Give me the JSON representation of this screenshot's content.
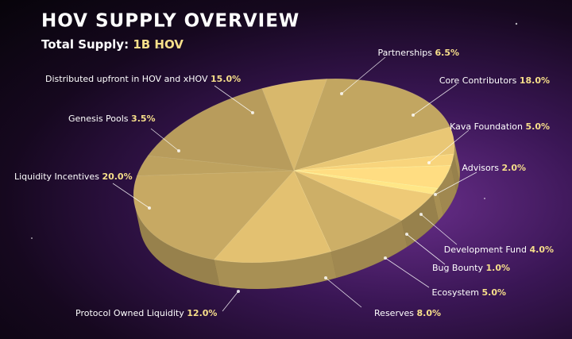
{
  "chart_data": {
    "type": "pie",
    "title": "HOV SUPPLY OVERVIEW",
    "total_supply": {
      "label": "Total Supply:",
      "value": "1B HOV"
    },
    "categories": [
      "Partnerships",
      "Core Contributors",
      "Kava Foundation",
      "Advisors",
      "Development Fund",
      "Bug Bounty",
      "Ecosystem",
      "Reserves",
      "Protocol Owned Liquidity",
      "Liquidity Incentives",
      "Genesis Pools",
      "Distributed upfront in HOV and xHOV"
    ],
    "values": [
      6.5,
      18.0,
      5.0,
      2.0,
      4.0,
      1.0,
      5.0,
      8.0,
      12.0,
      20.0,
      3.5,
      15.0
    ],
    "value_labels": [
      "6.5%",
      "18.0%",
      "5.0%",
      "2.0%",
      "4.0%",
      "1.0%",
      "5.0%",
      "8.0%",
      "12.0%",
      "20.0%",
      "3.5%",
      "15.0%"
    ],
    "color": "#d8b86c",
    "label_color": "#f7df8a"
  }
}
